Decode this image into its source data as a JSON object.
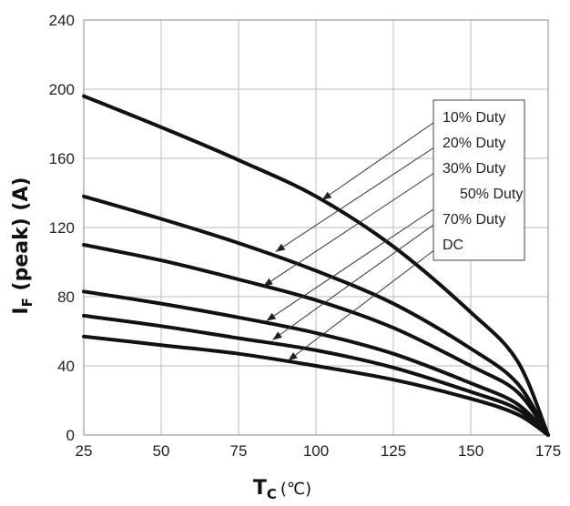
{
  "chart_data": {
    "type": "line",
    "xlabel": {
      "main": "T",
      "sub": "C",
      "unit": "(℃)"
    },
    "ylabel": {
      "main": "I",
      "sub": "F",
      "rest": " (peak) (A)"
    },
    "xlim": [
      25,
      175
    ],
    "ylim": [
      0,
      240
    ],
    "xticks": [
      "25",
      "50",
      "75",
      "100",
      "125",
      "150",
      "175"
    ],
    "yticks": [
      "0",
      "40",
      "80",
      "120",
      "160",
      "200",
      "240"
    ],
    "grid": true,
    "series": [
      {
        "name": "10% Duty",
        "x": [
          25,
          50,
          75,
          100,
          125,
          150,
          165,
          175
        ],
        "values": [
          196,
          178,
          159,
          138,
          109,
          71,
          43,
          0
        ]
      },
      {
        "name": "20% Duty",
        "x": [
          25,
          50,
          75,
          100,
          125,
          150,
          165,
          175
        ],
        "values": [
          138,
          125,
          111,
          95,
          76,
          50,
          30,
          0
        ]
      },
      {
        "name": "30% Duty",
        "x": [
          25,
          50,
          75,
          100,
          125,
          150,
          165,
          175
        ],
        "values": [
          110,
          101,
          90,
          78,
          62,
          40,
          25,
          0
        ]
      },
      {
        "name": "50% Duty",
        "x": [
          25,
          50,
          75,
          100,
          125,
          150,
          165,
          175
        ],
        "values": [
          83,
          76,
          68,
          59,
          47,
          30,
          18,
          0
        ]
      },
      {
        "name": "70% Duty",
        "x": [
          25,
          50,
          75,
          100,
          125,
          150,
          165,
          175
        ],
        "values": [
          69,
          63,
          56,
          49,
          39,
          25,
          15,
          0
        ]
      },
      {
        "name": "DC",
        "x": [
          25,
          50,
          75,
          100,
          125,
          150,
          165,
          175
        ],
        "values": [
          57,
          52,
          47,
          40,
          32,
          21,
          12,
          0
        ]
      }
    ],
    "legend": {
      "placement": "right, inside plot",
      "entries": [
        "10% Duty",
        "20% Duty",
        "30% Duty",
        "50% Duty",
        "70% Duty",
        "DC"
      ],
      "pointer_targets": [
        {
          "series": "10% Duty",
          "x": 102,
          "y": 136
        },
        {
          "series": "20% Duty",
          "x": 87,
          "y": 106
        },
        {
          "series": "30% Duty",
          "x": 83,
          "y": 86
        },
        {
          "series": "50% Duty",
          "x": 84,
          "y": 66
        },
        {
          "series": "70% Duty",
          "x": 86,
          "y": 55
        },
        {
          "series": "DC",
          "x": 91,
          "y": 43
        }
      ]
    },
    "line_color": "#111111",
    "grid_color": "#bbbbbb"
  }
}
